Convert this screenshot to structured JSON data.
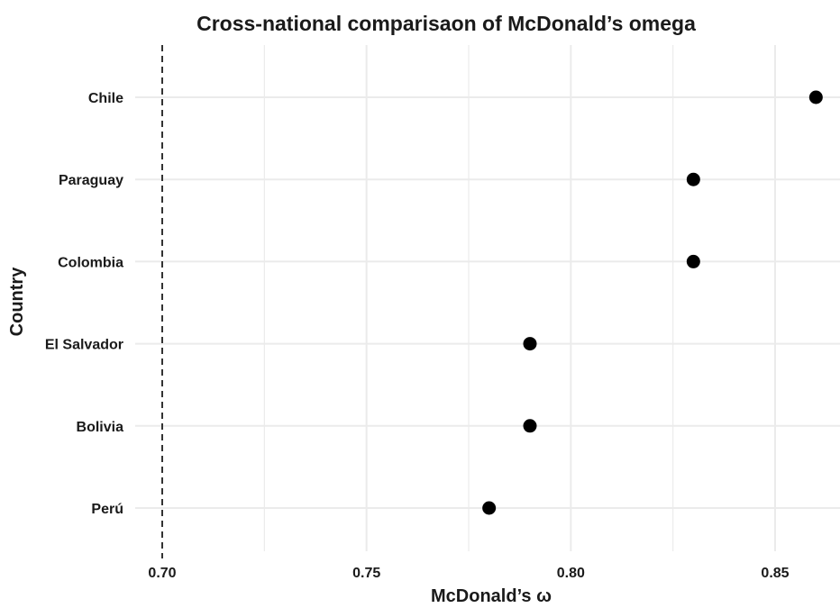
{
  "chart_data": {
    "type": "scatter",
    "title": "Cross-national comparisaon of McDonald’s omega",
    "xlabel": "McDonald’s ω",
    "ylabel": "Country",
    "categories": [
      "Chile",
      "Paraguay",
      "Colombia",
      "El Salvador",
      "Bolivia",
      "Perú"
    ],
    "values": [
      0.86,
      0.83,
      0.83,
      0.79,
      0.79,
      0.78
    ],
    "xlim": [
      0.7,
      0.8615
    ],
    "xticks": [
      "0.70",
      "0.75",
      "0.80",
      "0.85"
    ],
    "reference_line": {
      "x": 0.7,
      "style": "dashed"
    },
    "grid": true,
    "colors": {
      "point": "#000000",
      "grid": "#ebebeb",
      "text": "#1a1a1a"
    }
  }
}
